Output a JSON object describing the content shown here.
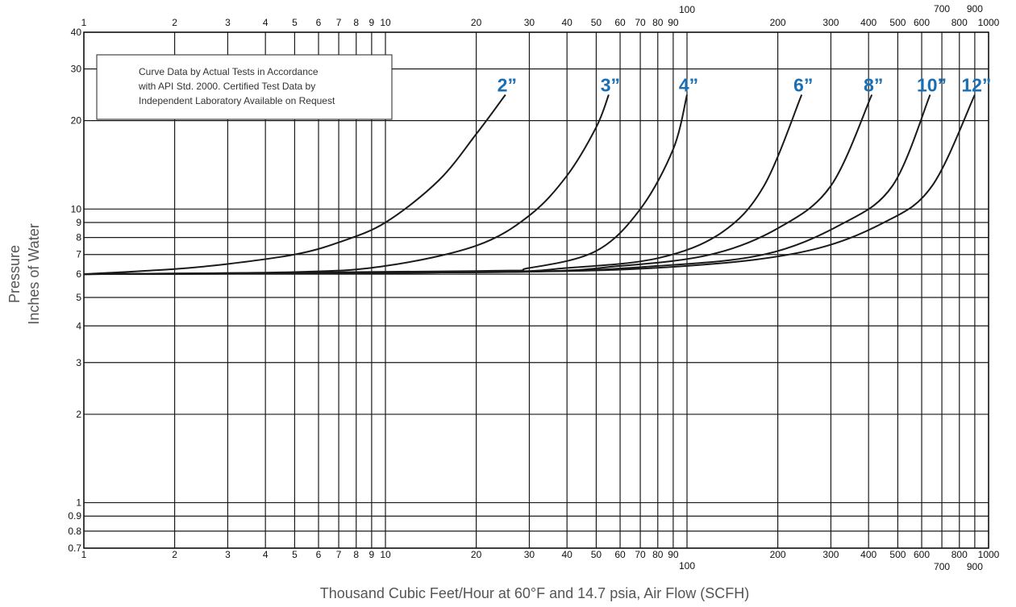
{
  "chart_data": {
    "type": "line",
    "x_scale": "log",
    "y_scale": "log",
    "xlim": [
      1,
      1000
    ],
    "ylim": [
      0.7,
      40
    ],
    "grid": true,
    "xlabel": "Thousand Cubic Feet/Hour at 60°F and 14.7 psia, Air Flow (SCFH)",
    "ylabel": [
      "Pressure",
      "Inches of Water"
    ],
    "note": [
      "Curve Data by Actual Tests in Accordance",
      "with API Std. 2000. Certified Test Data by",
      "Independent Laboratory Available on Request"
    ],
    "x_ticks": [
      {
        "value": 1,
        "label": "1"
      },
      {
        "value": 2,
        "label": "2"
      },
      {
        "value": 3,
        "label": "3"
      },
      {
        "value": 4,
        "label": "4"
      },
      {
        "value": 5,
        "label": "5"
      },
      {
        "value": 6,
        "label": "6"
      },
      {
        "value": 7,
        "label": "7"
      },
      {
        "value": 8,
        "label": "8"
      },
      {
        "value": 9,
        "label": "9"
      },
      {
        "value": 10,
        "label": "10"
      },
      {
        "value": 20,
        "label": "20"
      },
      {
        "value": 30,
        "label": "30"
      },
      {
        "value": 40,
        "label": "40"
      },
      {
        "value": 50,
        "label": "50"
      },
      {
        "value": 60,
        "label": "60"
      },
      {
        "value": 70,
        "label": "70"
      },
      {
        "value": 80,
        "label": "80"
      },
      {
        "value": 90,
        "label": "90"
      },
      {
        "value": 100,
        "label": "100"
      },
      {
        "value": 200,
        "label": "200"
      },
      {
        "value": 300,
        "label": "300"
      },
      {
        "value": 400,
        "label": "400"
      },
      {
        "value": 500,
        "label": "500"
      },
      {
        "value": 600,
        "label": "600"
      },
      {
        "value": 700,
        "label": "700"
      },
      {
        "value": 800,
        "label": "800"
      },
      {
        "value": 900,
        "label": "900"
      },
      {
        "value": 1000,
        "label": "1000"
      }
    ],
    "y_ticks": [
      {
        "value": 0.7,
        "label": "0.7"
      },
      {
        "value": 0.8,
        "label": "0.8"
      },
      {
        "value": 0.9,
        "label": "0.9"
      },
      {
        "value": 1,
        "label": "1"
      },
      {
        "value": 2,
        "label": "2"
      },
      {
        "value": 3,
        "label": "3"
      },
      {
        "value": 4,
        "label": "4"
      },
      {
        "value": 5,
        "label": "5"
      },
      {
        "value": 6,
        "label": "6"
      },
      {
        "value": 7,
        "label": "7"
      },
      {
        "value": 8,
        "label": "8"
      },
      {
        "value": 9,
        "label": "9"
      },
      {
        "value": 10,
        "label": "10"
      },
      {
        "value": 20,
        "label": "20"
      },
      {
        "value": 30,
        "label": "30"
      },
      {
        "value": 40,
        "label": "40"
      }
    ],
    "label_color": "#1a6fb4",
    "series": [
      {
        "name": "2”",
        "points": [
          [
            1,
            6.0
          ],
          [
            2,
            6.25
          ],
          [
            3,
            6.5
          ],
          [
            5,
            7.0
          ],
          [
            7,
            7.7
          ],
          [
            10,
            9.0
          ],
          [
            15,
            12.5
          ],
          [
            20,
            18.0
          ],
          [
            25,
            24.5
          ]
        ]
      },
      {
        "name": "3”",
        "points": [
          [
            1,
            6.0
          ],
          [
            5,
            6.1
          ],
          [
            10,
            6.4
          ],
          [
            20,
            7.5
          ],
          [
            30,
            9.5
          ],
          [
            40,
            13.0
          ],
          [
            50,
            19.0
          ],
          [
            55,
            24.5
          ]
        ]
      },
      {
        "name": "4”",
        "points": [
          [
            1,
            6.0
          ],
          [
            20,
            6.15
          ],
          [
            30,
            6.3
          ],
          [
            50,
            7.2
          ],
          [
            70,
            10.0
          ],
          [
            90,
            16.0
          ],
          [
            100,
            24.5
          ]
        ]
      },
      {
        "name": "6”",
        "points": [
          [
            1,
            6.0
          ],
          [
            20,
            6.1
          ],
          [
            40,
            6.3
          ],
          [
            80,
            6.8
          ],
          [
            130,
            8.3
          ],
          [
            180,
            12.0
          ],
          [
            240,
            24.5
          ]
        ]
      },
      {
        "name": "8”",
        "points": [
          [
            1,
            6.0
          ],
          [
            25,
            6.1
          ],
          [
            60,
            6.4
          ],
          [
            120,
            7.0
          ],
          [
            200,
            8.6
          ],
          [
            300,
            12.0
          ],
          [
            410,
            24.5
          ]
        ]
      },
      {
        "name": "10”",
        "points": [
          [
            1,
            6.0
          ],
          [
            25,
            6.1
          ],
          [
            80,
            6.4
          ],
          [
            180,
            7.0
          ],
          [
            320,
            8.8
          ],
          [
            480,
            12.0
          ],
          [
            640,
            24.5
          ]
        ]
      },
      {
        "name": "12”",
        "points": [
          [
            1,
            6.0
          ],
          [
            25,
            6.1
          ],
          [
            100,
            6.4
          ],
          [
            250,
            7.2
          ],
          [
            450,
            9.0
          ],
          [
            650,
            12.0
          ],
          [
            900,
            24.5
          ]
        ]
      }
    ]
  }
}
